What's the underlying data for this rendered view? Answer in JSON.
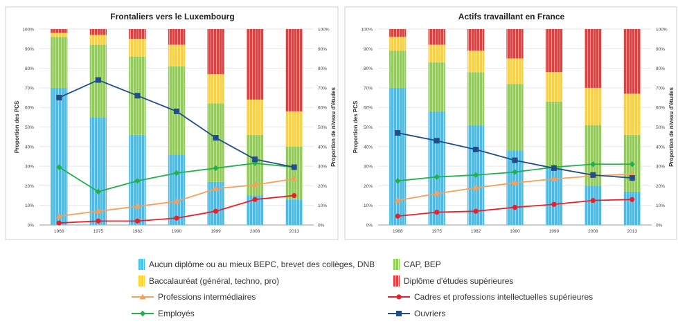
{
  "chart_data": [
    {
      "type": "bar",
      "title": "Frontaliers vers le Luxembourg",
      "ylabel_left": "Proportion des PCS",
      "ylabel_right": "Proportion de niveau d'études",
      "categories": [
        "1968",
        "1975",
        "1982",
        "1990",
        "1999",
        "2008",
        "2013"
      ],
      "ylim": [
        0,
        100
      ],
      "yticks": [
        "0%",
        "10%",
        "20%",
        "30%",
        "40%",
        "50%",
        "60%",
        "70%",
        "80%",
        "90%",
        "100%"
      ],
      "stacked_series": [
        {
          "name": "Aucun diplôme ou au mieux BEPC, brevet des collèges, DNB",
          "values": [
            70,
            55,
            46,
            36,
            22,
            15,
            13
          ]
        },
        {
          "name": "CAP, BEP",
          "values": [
            26,
            37,
            40,
            45,
            40,
            31,
            27
          ]
        },
        {
          "name": "Baccalauréat (général, techno, pro)",
          "values": [
            2,
            5,
            9,
            11,
            15,
            18,
            18
          ]
        },
        {
          "name": "Diplôme d'études supérieures",
          "values": [
            2,
            3,
            5,
            8,
            23,
            36,
            42
          ]
        }
      ],
      "line_series": [
        {
          "name": "Professions intermédiaires",
          "values": [
            4.5,
            7,
            9.5,
            12,
            18.5,
            20.5,
            23.5
          ]
        },
        {
          "name": "Cadres et professions intellectuelles supérieures",
          "values": [
            1,
            2,
            2,
            3.5,
            7,
            13,
            15
          ]
        },
        {
          "name": "Employés",
          "values": [
            29.5,
            17,
            22.5,
            26.5,
            29,
            31.5,
            29.5
          ]
        },
        {
          "name": "Ouvriers",
          "values": [
            65,
            74,
            66,
            58,
            44.5,
            33.5,
            29.5
          ]
        }
      ]
    },
    {
      "type": "bar",
      "title": "Actifs travaillant en France",
      "ylabel_left": "Proportion des PCS",
      "ylabel_right": "Proportion de niveau d'études",
      "categories": [
        "1968",
        "1975",
        "1982",
        "1990",
        "1999",
        "2008",
        "2013"
      ],
      "ylim": [
        0,
        100
      ],
      "yticks": [
        "0%",
        "10%",
        "20%",
        "30%",
        "40%",
        "50%",
        "60%",
        "70%",
        "80%",
        "90%",
        "100%"
      ],
      "stacked_series": [
        {
          "name": "Aucun diplôme ou au mieux BEPC, brevet des collèges, DNB",
          "values": [
            70,
            58,
            51,
            38,
            29,
            20,
            17
          ]
        },
        {
          "name": "CAP, BEP",
          "values": [
            19,
            25,
            27,
            34,
            34,
            31,
            29
          ]
        },
        {
          "name": "Baccalauréat (général, techno, pro)",
          "values": [
            7,
            9,
            11,
            13,
            15,
            19,
            21
          ]
        },
        {
          "name": "Diplôme d'études supérieures",
          "values": [
            4,
            8,
            11,
            15,
            22,
            30,
            33
          ]
        }
      ],
      "line_series": [
        {
          "name": "Professions intermédiaires",
          "values": [
            12.5,
            16,
            19,
            21.5,
            23.5,
            25,
            26
          ]
        },
        {
          "name": "Cadres et professions intellectuelles supérieures",
          "values": [
            4.5,
            6.5,
            7,
            9,
            10.5,
            12.5,
            13
          ]
        },
        {
          "name": "Employés",
          "values": [
            22.5,
            24.5,
            25.5,
            27,
            29.5,
            31,
            31
          ]
        },
        {
          "name": "Ouvriers",
          "values": [
            47,
            43,
            38.5,
            33,
            29,
            25.5,
            24
          ]
        }
      ]
    }
  ],
  "colors": {
    "Aucun diplôme ou au mieux BEPC, brevet des collèges, DNB": "#3fc0f0",
    "CAP, BEP": "#8fd14f",
    "Baccalauréat (général, techno, pro)": "#ffd22e",
    "Diplôme d'études supérieures": "#ee3a3a",
    "Professions intermédiaires": "#f5a05a",
    "Cadres et professions intellectuelles supérieures": "#e8202a",
    "Employés": "#22b04b",
    "Ouvriers": "#1f4e8a"
  },
  "legend": {
    "position": "bottom",
    "items": [
      {
        "label": "Aucun diplôme ou au mieux BEPC, brevet des collèges, DNB",
        "kind": "bar"
      },
      {
        "label": "CAP, BEP",
        "kind": "bar"
      },
      {
        "label": "Baccalauréat (général, techno, pro)",
        "kind": "bar"
      },
      {
        "label": "Diplôme d'études supérieures",
        "kind": "bar"
      },
      {
        "label": "Professions intermédiaires",
        "kind": "line",
        "marker": "triangle"
      },
      {
        "label": "Cadres et professions intellectuelles supérieures",
        "kind": "line",
        "marker": "circle"
      },
      {
        "label": "Employés",
        "kind": "line",
        "marker": "diamond"
      },
      {
        "label": "Ouvriers",
        "kind": "line",
        "marker": "square"
      }
    ]
  }
}
